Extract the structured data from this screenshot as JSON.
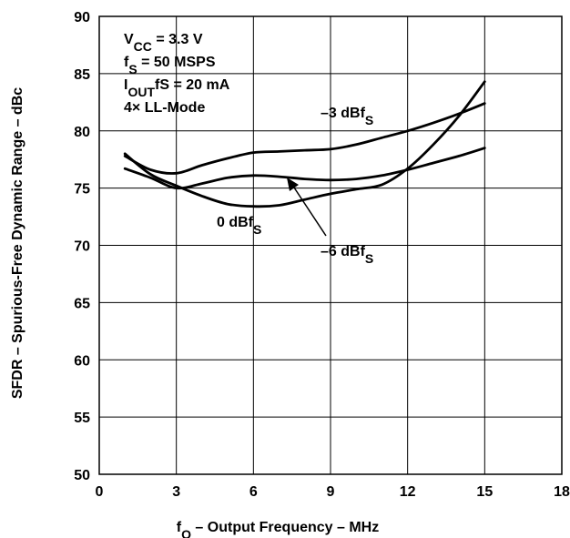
{
  "chart_data": {
    "type": "line",
    "xlabel": "f",
    "xlabel_sub": "O",
    "xlabel_rest": " – Output Frequency – MHz",
    "ylabel": "SFDR – Spurious-Free Dynamic Range – dBc",
    "xlim": [
      0,
      18
    ],
    "ylim": [
      50,
      90
    ],
    "xticks": [
      0,
      3,
      6,
      9,
      12,
      15,
      18
    ],
    "yticks": [
      50,
      55,
      60,
      65,
      70,
      75,
      80,
      85,
      90
    ],
    "grid": true,
    "annotations": [
      {
        "main": "V",
        "sub": "CC",
        "rest": " = 3.3 V"
      },
      {
        "main": "f",
        "sub": "S",
        "rest": " = 50 MSPS"
      },
      {
        "main": "I",
        "sub": "OUT",
        "rest": "fS = 20 mA"
      },
      {
        "main": "4× LL-Mode",
        "sub": "",
        "rest": ""
      }
    ],
    "series": [
      {
        "name": "–3 dBfS",
        "x": [
          1,
          2,
          3,
          4,
          5,
          6,
          7,
          8,
          9,
          10,
          11,
          12,
          13,
          14,
          15
        ],
        "y": [
          77.8,
          76.6,
          76.3,
          77.0,
          77.6,
          78.1,
          78.2,
          78.3,
          78.4,
          78.8,
          79.4,
          80.0,
          80.7,
          81.5,
          82.4
        ]
      },
      {
        "name": "0 dBfS",
        "x": [
          1,
          2,
          3,
          4,
          5,
          6,
          7,
          8,
          9,
          10,
          11,
          12,
          13,
          14,
          15
        ],
        "y": [
          78.0,
          76.2,
          75.2,
          74.3,
          73.6,
          73.4,
          73.5,
          74.0,
          74.5,
          74.9,
          75.3,
          76.7,
          78.8,
          81.3,
          84.3
        ]
      },
      {
        "name": "–6 dBfS",
        "x": [
          1,
          2,
          3,
          4,
          5,
          6,
          7,
          8,
          9,
          10,
          11,
          12,
          13,
          14,
          15
        ],
        "y": [
          76.7,
          75.9,
          75.0,
          75.4,
          75.9,
          76.1,
          76.0,
          75.8,
          75.7,
          75.8,
          76.1,
          76.6,
          77.2,
          77.8,
          78.5
        ]
      }
    ],
    "series_labels": [
      {
        "main": "–3 dBf",
        "sub": "S"
      },
      {
        "main": "0 dBf",
        "sub": "S"
      },
      {
        "main": "–6 dBf",
        "sub": "S"
      }
    ]
  }
}
